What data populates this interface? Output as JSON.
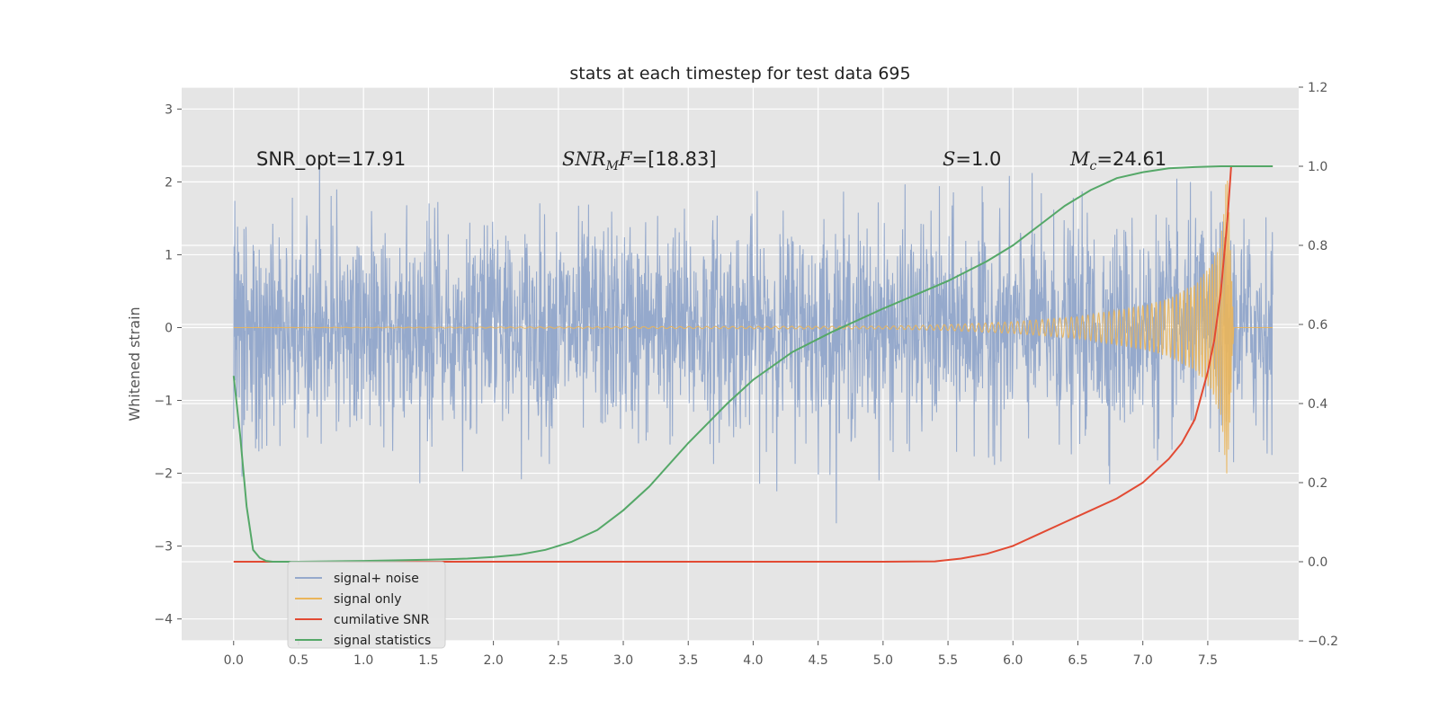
{
  "chart_data": {
    "type": "line",
    "title": "stats at each timestep for test data 695",
    "ylabel": "Whitened strain",
    "xlim": [
      -0.4,
      8.2
    ],
    "ylim": [
      -4.3,
      3.3
    ],
    "y2lim": [
      -0.2,
      1.2
    ],
    "grid": true,
    "x_ticks": [
      0.0,
      0.5,
      1.0,
      1.5,
      2.0,
      2.5,
      3.0,
      3.5,
      4.0,
      4.5,
      5.0,
      5.5,
      6.0,
      6.5,
      7.0,
      7.5
    ],
    "x_tick_labels": [
      "0.0",
      "0.5",
      "1.0",
      "1.5",
      "2.0",
      "2.5",
      "3.0",
      "3.5",
      "4.0",
      "4.5",
      "5.0",
      "5.5",
      "6.0",
      "6.5",
      "7.0",
      "7.5"
    ],
    "y_ticks": [
      3,
      2,
      1,
      0,
      -1,
      -2,
      -3,
      -4
    ],
    "y_tick_labels": [
      "3",
      "2",
      "1",
      "0",
      "−1",
      "−2",
      "−3",
      "−4"
    ],
    "y2_ticks": [
      1.2,
      1.0,
      0.8,
      0.6,
      0.4,
      0.2,
      0.0,
      -0.2
    ],
    "y2_tick_labels": [
      "1.2",
      "1.0",
      "0.8",
      "0.6",
      "0.4",
      "0.2",
      "0.0",
      "−0.2"
    ],
    "annotations": {
      "snr_opt": "SNR_opt=17.91",
      "snr_mf_sym": "SNR",
      "snr_mf_sub": "M",
      "snr_mf_mid": "F",
      "snr_mf_val": "=[18.83]",
      "s_sym": "S",
      "s_val": "=1.0",
      "mc_sym": "M",
      "mc_sub": "c",
      "mc_val": "=24.61"
    },
    "legend_position": "lower-left",
    "series": [
      {
        "name": "signal+ noise",
        "axis": "left",
        "color": "#95a9cc",
        "note": "whitened noisy strain, roughly ±1.3 with spikes to ±2.5",
        "x_range": [
          0.0,
          8.0
        ],
        "amplitude": 1.3
      },
      {
        "name": "signal only",
        "axis": "left",
        "color": "#eab55a",
        "chirp_envelope": {
          "x": [
            0.0,
            5.0,
            5.5,
            6.0,
            6.5,
            7.0,
            7.2,
            7.4,
            7.5,
            7.6,
            7.65,
            7.7
          ],
          "amplitude": [
            0.0,
            0.02,
            0.04,
            0.08,
            0.15,
            0.3,
            0.4,
            0.6,
            0.8,
            1.2,
            2.2,
            0.0
          ]
        }
      },
      {
        "name": "cumilative SNR",
        "axis": "right",
        "color": "#e24a33",
        "x": [
          0.0,
          1.0,
          2.0,
          3.0,
          4.0,
          5.0,
          5.4,
          5.6,
          5.8,
          6.0,
          6.2,
          6.4,
          6.6,
          6.8,
          7.0,
          7.2,
          7.3,
          7.4,
          7.45,
          7.5,
          7.55,
          7.6,
          7.65,
          7.68,
          8.0
        ],
        "y": [
          0.0,
          0.0,
          0.0,
          0.0,
          0.0,
          0.0,
          0.001,
          0.008,
          0.02,
          0.04,
          0.07,
          0.1,
          0.13,
          0.16,
          0.2,
          0.26,
          0.3,
          0.36,
          0.42,
          0.48,
          0.56,
          0.68,
          0.86,
          1.0,
          1.0
        ]
      },
      {
        "name": "signal statistics",
        "axis": "right",
        "color": "#55a868",
        "x": [
          0.0,
          0.05,
          0.1,
          0.15,
          0.2,
          0.25,
          0.3,
          0.5,
          1.0,
          1.5,
          1.8,
          2.0,
          2.2,
          2.4,
          2.6,
          2.8,
          3.0,
          3.2,
          3.5,
          3.8,
          4.0,
          4.3,
          4.6,
          5.0,
          5.5,
          5.8,
          6.0,
          6.2,
          6.4,
          6.6,
          6.8,
          7.0,
          7.2,
          7.4,
          7.6,
          8.0
        ],
        "y": [
          0.47,
          0.32,
          0.14,
          0.03,
          0.01,
          0.002,
          0.0,
          0.0,
          0.002,
          0.005,
          0.008,
          0.012,
          0.018,
          0.03,
          0.05,
          0.08,
          0.13,
          0.19,
          0.3,
          0.4,
          0.46,
          0.53,
          0.58,
          0.64,
          0.71,
          0.76,
          0.8,
          0.85,
          0.9,
          0.94,
          0.97,
          0.985,
          0.995,
          0.998,
          1.0,
          1.0
        ]
      }
    ]
  }
}
